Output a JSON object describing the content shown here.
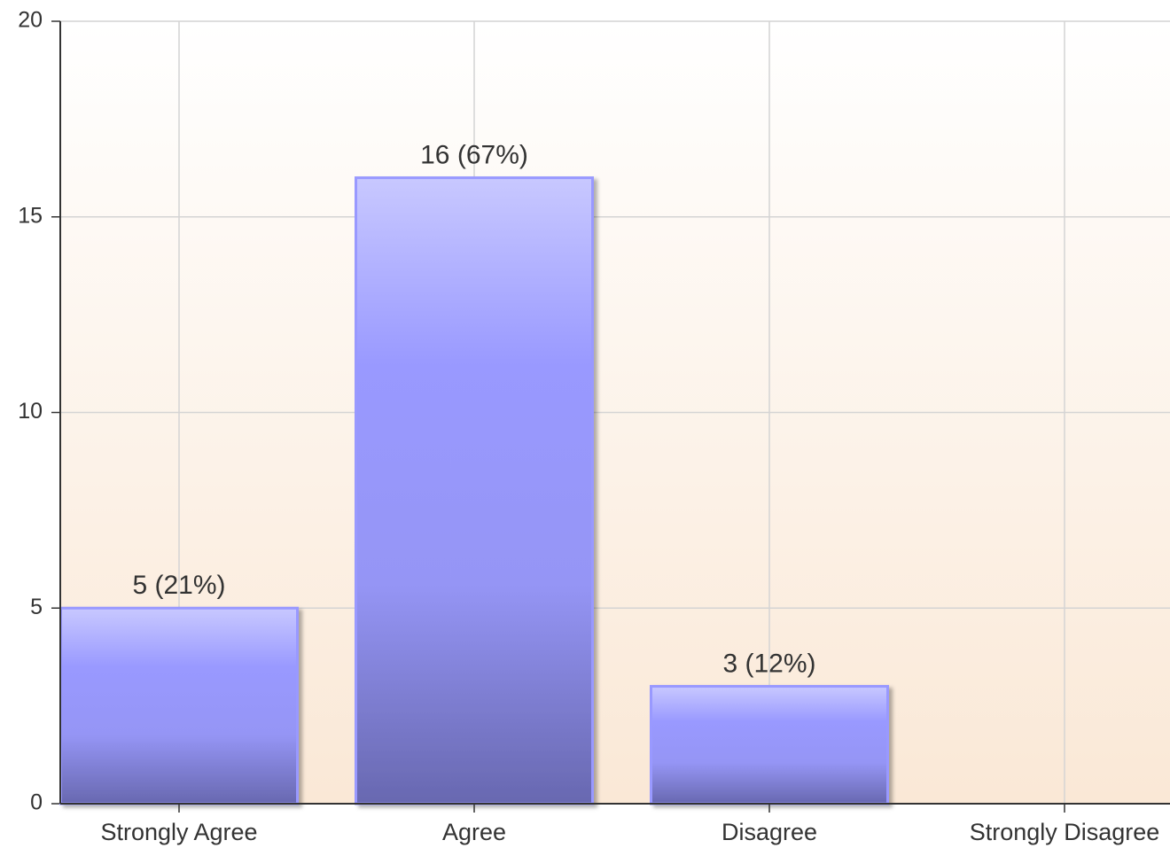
{
  "chart_data": {
    "type": "bar",
    "categories": [
      "Strongly Agree",
      "Agree",
      "Disagree",
      "Strongly Disagree"
    ],
    "values": [
      5,
      16,
      3,
      0
    ],
    "value_labels": [
      "5 (21%)",
      "16 (67%)",
      "3 (12%)",
      null
    ],
    "color": "#9999ff",
    "ylim": [
      0,
      20
    ],
    "yticks": [
      0,
      5,
      10,
      15,
      20
    ],
    "grid": true
  }
}
